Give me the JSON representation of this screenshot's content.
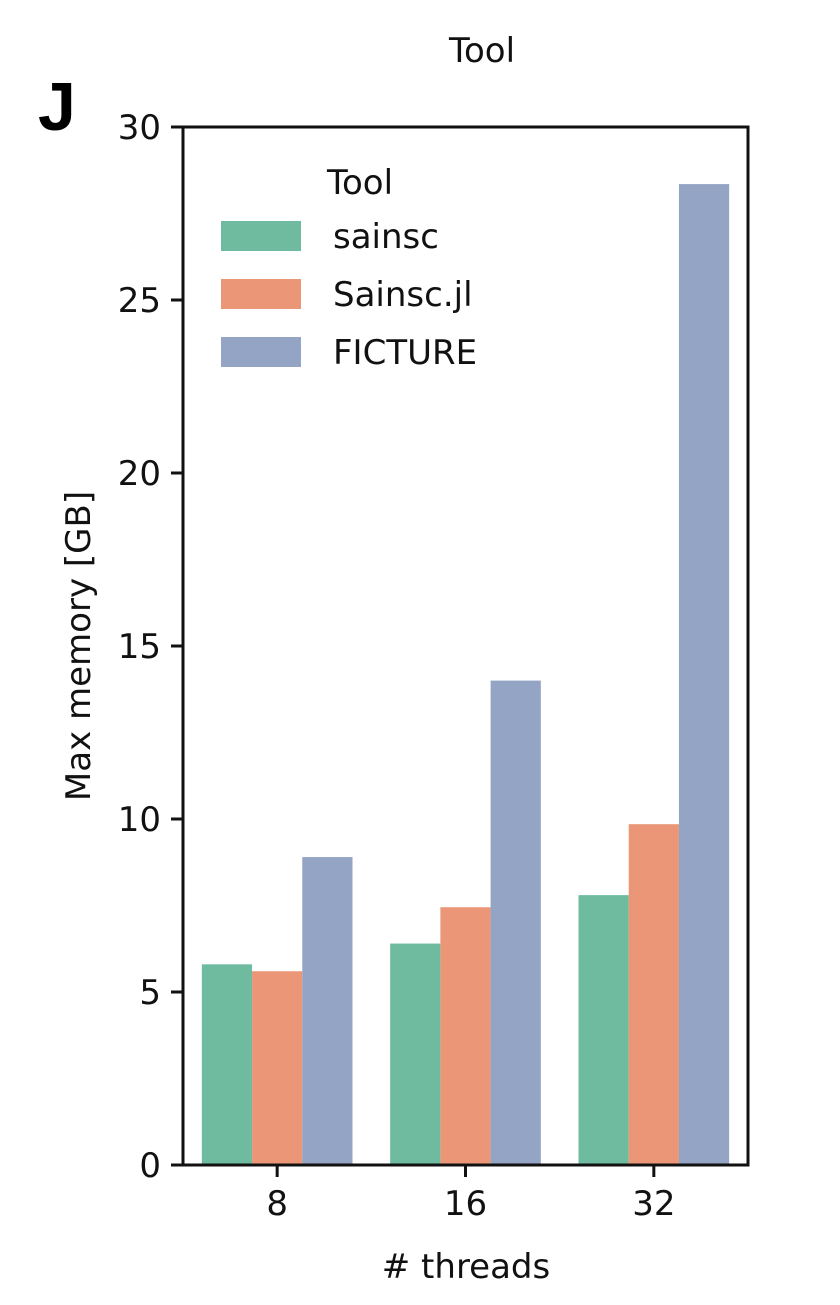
{
  "panel_label": "J",
  "top_title": "Tool",
  "chart_data": {
    "type": "bar",
    "categories": [
      "8",
      "16",
      "32"
    ],
    "series": [
      {
        "name": "sainsc",
        "values": [
          5.8,
          6.4,
          7.8
        ],
        "color": "#6ebb9f"
      },
      {
        "name": "Sainsc.jl",
        "values": [
          5.6,
          7.45,
          9.85
        ],
        "color": "#ea9677"
      },
      {
        "name": "FICTURE",
        "values": [
          8.9,
          14.0,
          28.35
        ],
        "color": "#94a4c4"
      }
    ],
    "xlabel": "# threads",
    "ylabel": "Max memory [GB]",
    "ylim": [
      0,
      30
    ],
    "yticks": [
      0,
      5,
      10,
      15,
      20,
      25,
      30
    ],
    "legend": {
      "title": "Tool",
      "placement": "top-left"
    },
    "grid": false
  }
}
